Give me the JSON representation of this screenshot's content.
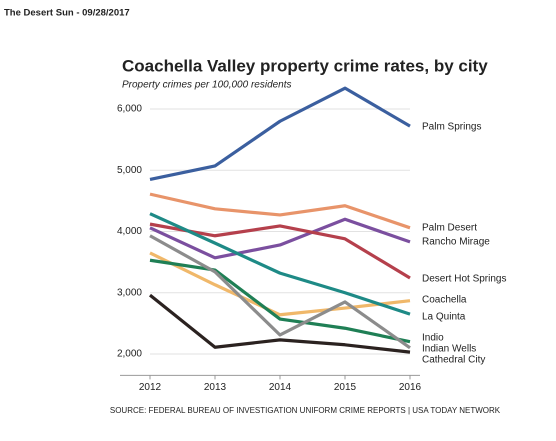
{
  "header": "The Desert Sun - 09/28/2017",
  "chart_data": {
    "type": "line",
    "title": "Coachella Valley property crime rates, by city",
    "subtitle": "Property crimes per 100,000 residents",
    "source": "SOURCE: FEDERAL BUREAU OF INVESTIGATION UNIFORM CRIME REPORTS | USA TODAY NETWORK",
    "x": [
      2012,
      2013,
      2014,
      2015,
      2016
    ],
    "xlim": [
      2012,
      2016
    ],
    "xticks": [
      2012,
      2013,
      2014,
      2015,
      2016
    ],
    "ylim": [
      1650,
      6400
    ],
    "yticks": [
      {
        "value": 2000,
        "label": "2,000"
      },
      {
        "value": 3000,
        "label": "3,000"
      },
      {
        "value": 4000,
        "label": "4,000"
      },
      {
        "value": 5000,
        "label": "5,000"
      },
      {
        "value": 6000,
        "label": "6,000"
      }
    ],
    "grid": true,
    "series": [
      {
        "name": "Palm Springs",
        "color": "#3b5f9f",
        "values": [
          4850,
          5070,
          5800,
          6340,
          5720
        ]
      },
      {
        "name": "Palm Desert",
        "color": "#e8946a",
        "values": [
          4610,
          4370,
          4270,
          4420,
          4060
        ]
      },
      {
        "name": "Rancho Mirage",
        "color": "#7b4f9f",
        "values": [
          4060,
          3570,
          3780,
          4200,
          3830
        ]
      },
      {
        "name": "Desert Hot Springs",
        "color": "#b5404c",
        "values": [
          4120,
          3930,
          4090,
          3880,
          3240
        ]
      },
      {
        "name": "Coachella",
        "color": "#f0b86a",
        "values": [
          3650,
          3130,
          2640,
          2750,
          2870
        ]
      },
      {
        "name": "La Quinta",
        "color": "#1e8a86",
        "values": [
          4290,
          3810,
          3320,
          3000,
          2650
        ]
      },
      {
        "name": "Indio",
        "color": "#1f7f55",
        "values": [
          3530,
          3370,
          2570,
          2420,
          2200
        ]
      },
      {
        "name": "Indian Wells",
        "color": "#8c8c8c",
        "values": [
          3930,
          3340,
          2310,
          2850,
          2100
        ]
      },
      {
        "name": "Cathedral City",
        "color": "#2b2220",
        "values": [
          2960,
          2110,
          2230,
          2150,
          2030
        ]
      }
    ]
  }
}
